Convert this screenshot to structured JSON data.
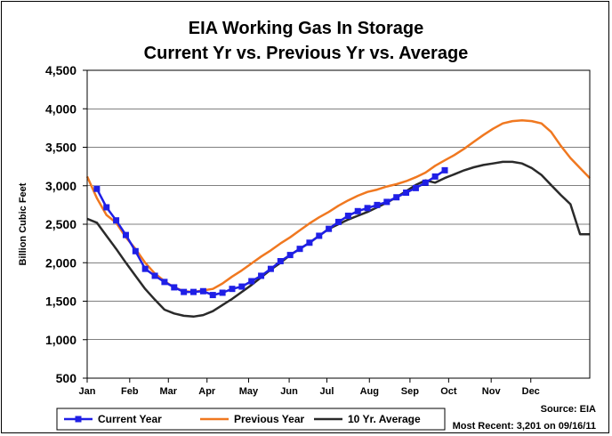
{
  "chart_data": {
    "type": "line",
    "title": "EIA Working Gas In Storage",
    "subtitle": "Current Yr vs. Previous Yr vs. Average",
    "ylabel": "Billion Cubic Feet",
    "xlabel": "",
    "ylim": [
      500,
      4500
    ],
    "xlim": [
      0,
      52
    ],
    "yticks": [
      500,
      1000,
      1500,
      2000,
      2500,
      3000,
      3500,
      4000,
      4500
    ],
    "ytick_labels": [
      "500",
      "1,000",
      "1,500",
      "2,000",
      "2,500",
      "3,000",
      "3,500",
      "4,000",
      "4,500"
    ],
    "xtick_labels": [
      "Jan",
      "Feb",
      "Mar",
      "Apr",
      "May",
      "Jun",
      "Jul",
      "Aug",
      "Sep",
      "Oct",
      "Nov",
      "Dec"
    ],
    "xtick_weeks": [
      0,
      4.4,
      8.4,
      12.4,
      16.7,
      20.9,
      24.8,
      29.2,
      33.4,
      37.4,
      41.8,
      45.9
    ],
    "grid": true,
    "legend_position": "bottom",
    "series": [
      {
        "name": "Current Year",
        "color": "#1f1fe6",
        "marker": "square",
        "x": [
          1,
          2,
          3,
          4,
          5,
          6,
          7,
          8,
          9,
          10,
          11,
          12,
          13,
          14,
          15,
          16,
          17,
          18,
          19,
          20,
          21,
          22,
          23,
          24,
          25,
          26,
          27,
          28,
          29,
          30,
          31,
          32,
          33,
          34,
          35,
          36,
          37
        ],
        "values": [
          2960,
          2720,
          2550,
          2360,
          2150,
          1920,
          1830,
          1750,
          1680,
          1620,
          1620,
          1630,
          1580,
          1610,
          1660,
          1690,
          1760,
          1830,
          1920,
          2020,
          2100,
          2180,
          2260,
          2350,
          2440,
          2530,
          2610,
          2670,
          2710,
          2750,
          2790,
          2850,
          2910,
          2970,
          3040,
          3120,
          3201
        ]
      },
      {
        "name": "Previous Year",
        "color": "#f07820",
        "marker": "none",
        "x": [
          0,
          1,
          2,
          3,
          4,
          5,
          6,
          7,
          8,
          9,
          10,
          11,
          12,
          13,
          14,
          15,
          16,
          17,
          18,
          19,
          20,
          21,
          22,
          23,
          24,
          25,
          26,
          27,
          28,
          29,
          30,
          31,
          32,
          33,
          34,
          35,
          36,
          37,
          38,
          39,
          40,
          41,
          42,
          43,
          44,
          45,
          46,
          47,
          48,
          49,
          50,
          51,
          52
        ],
        "values": [
          3120,
          2840,
          2620,
          2520,
          2330,
          2180,
          2000,
          1860,
          1760,
          1680,
          1630,
          1620,
          1640,
          1660,
          1730,
          1820,
          1900,
          1990,
          2080,
          2160,
          2250,
          2330,
          2420,
          2510,
          2590,
          2660,
          2740,
          2810,
          2870,
          2920,
          2950,
          2990,
          3020,
          3060,
          3110,
          3170,
          3260,
          3330,
          3400,
          3480,
          3570,
          3660,
          3740,
          3810,
          3840,
          3850,
          3840,
          3810,
          3700,
          3520,
          3360,
          3230,
          3100
        ]
      },
      {
        "name": "10 Yr. Average",
        "color": "#2a2a2a",
        "marker": "none",
        "x": [
          0,
          1,
          2,
          3,
          4,
          5,
          6,
          7,
          8,
          9,
          10,
          11,
          12,
          13,
          14,
          15,
          16,
          17,
          18,
          19,
          20,
          21,
          22,
          23,
          24,
          25,
          26,
          27,
          28,
          29,
          30,
          31,
          32,
          33,
          34,
          35,
          36,
          37,
          38,
          39,
          40,
          41,
          42,
          43,
          44,
          45,
          46,
          47,
          48,
          49,
          50,
          51,
          52
        ],
        "values": [
          2570,
          2520,
          2350,
          2180,
          2000,
          1830,
          1660,
          1520,
          1390,
          1340,
          1310,
          1300,
          1320,
          1370,
          1450,
          1530,
          1620,
          1710,
          1810,
          1910,
          2000,
          2100,
          2180,
          2260,
          2350,
          2440,
          2500,
          2560,
          2610,
          2660,
          2720,
          2780,
          2850,
          2930,
          3010,
          3070,
          3040,
          3100,
          3150,
          3200,
          3240,
          3270,
          3290,
          3310,
          3310,
          3290,
          3230,
          3140,
          3010,
          2880,
          2760,
          2370,
          2370
        ]
      }
    ],
    "notes": {
      "source": "Source: EIA",
      "most_recent": "Most Recent: 3,201 on 09/16/11"
    }
  }
}
